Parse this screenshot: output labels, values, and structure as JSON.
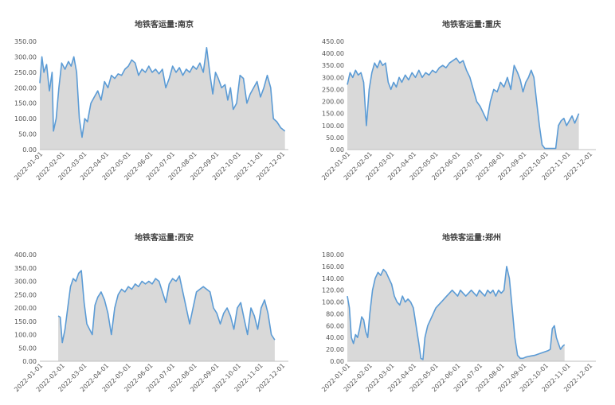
{
  "chart_data": [
    {
      "type": "area",
      "title": "地铁客运量:南京",
      "ylim": [
        0,
        350
      ],
      "y_ticks": [
        "0.00",
        "50.00",
        "100.00",
        "150.00",
        "200.00",
        "250.00",
        "300.00",
        "350.00"
      ],
      "x_ticks": [
        "2022-01-01",
        "2022-02-01",
        "2022-03-01",
        "2022-04-01",
        "2022-05-01",
        "2022-06-01",
        "2022-07-01",
        "2022-08-01",
        "2022-09-01",
        "2022-10-01",
        "2022-11-01",
        "2022-12-01"
      ],
      "series_color": "#5b9bd5",
      "fill_color": "#d9d9d9",
      "points": [
        [
          0,
          215
        ],
        [
          3,
          300
        ],
        [
          6,
          250
        ],
        [
          10,
          275
        ],
        [
          14,
          190
        ],
        [
          18,
          250
        ],
        [
          20,
          60
        ],
        [
          24,
          100
        ],
        [
          28,
          200
        ],
        [
          32,
          280
        ],
        [
          37,
          260
        ],
        [
          42,
          285
        ],
        [
          46,
          270
        ],
        [
          50,
          300
        ],
        [
          54,
          250
        ],
        [
          58,
          100
        ],
        [
          62,
          40
        ],
        [
          66,
          100
        ],
        [
          70,
          90
        ],
        [
          75,
          150
        ],
        [
          80,
          170
        ],
        [
          85,
          190
        ],
        [
          90,
          160
        ],
        [
          95,
          220
        ],
        [
          100,
          200
        ],
        [
          105,
          240
        ],
        [
          110,
          230
        ],
        [
          115,
          245
        ],
        [
          120,
          240
        ],
        [
          125,
          260
        ],
        [
          130,
          270
        ],
        [
          135,
          290
        ],
        [
          140,
          280
        ],
        [
          145,
          240
        ],
        [
          150,
          260
        ],
        [
          155,
          250
        ],
        [
          160,
          270
        ],
        [
          165,
          250
        ],
        [
          170,
          260
        ],
        [
          175,
          245
        ],
        [
          180,
          260
        ],
        [
          185,
          200
        ],
        [
          190,
          230
        ],
        [
          195,
          270
        ],
        [
          200,
          250
        ],
        [
          205,
          265
        ],
        [
          210,
          240
        ],
        [
          215,
          260
        ],
        [
          220,
          250
        ],
        [
          225,
          270
        ],
        [
          230,
          260
        ],
        [
          235,
          280
        ],
        [
          240,
          250
        ],
        [
          245,
          330
        ],
        [
          250,
          240
        ],
        [
          254,
          180
        ],
        [
          258,
          250
        ],
        [
          262,
          230
        ],
        [
          267,
          200
        ],
        [
          272,
          210
        ],
        [
          276,
          160
        ],
        [
          280,
          200
        ],
        [
          284,
          130
        ],
        [
          289,
          150
        ],
        [
          294,
          240
        ],
        [
          299,
          230
        ],
        [
          304,
          150
        ],
        [
          309,
          180
        ],
        [
          314,
          200
        ],
        [
          319,
          220
        ],
        [
          324,
          170
        ],
        [
          329,
          200
        ],
        [
          334,
          240
        ],
        [
          339,
          200
        ],
        [
          343,
          100
        ],
        [
          348,
          90
        ],
        [
          354,
          70
        ],
        [
          360,
          60
        ]
      ]
    },
    {
      "type": "area",
      "title": "地铁客运量:重庆",
      "ylim": [
        0,
        450
      ],
      "y_ticks": [
        "0.00",
        "50.00",
        "100.00",
        "150.00",
        "200.00",
        "250.00",
        "300.00",
        "350.00",
        "400.00",
        "450.00"
      ],
      "x_ticks": [
        "2022-01-01",
        "2022-02-01",
        "2022-03-01",
        "2022-04-01",
        "2022-05-01",
        "2022-06-01",
        "2022-07-01",
        "2022-08-01",
        "2022-09-01",
        "2022-10-01",
        "2022-11-01",
        "2022-12-01"
      ],
      "series_color": "#5b9bd5",
      "fill_color": "#d9d9d9",
      "points": [
        [
          0,
          270
        ],
        [
          4,
          320
        ],
        [
          8,
          300
        ],
        [
          12,
          330
        ],
        [
          16,
          310
        ],
        [
          20,
          320
        ],
        [
          24,
          280
        ],
        [
          28,
          100
        ],
        [
          32,
          250
        ],
        [
          36,
          320
        ],
        [
          40,
          360
        ],
        [
          44,
          340
        ],
        [
          48,
          370
        ],
        [
          52,
          350
        ],
        [
          56,
          360
        ],
        [
          60,
          280
        ],
        [
          64,
          250
        ],
        [
          68,
          280
        ],
        [
          72,
          260
        ],
        [
          76,
          300
        ],
        [
          80,
          280
        ],
        [
          85,
          310
        ],
        [
          90,
          290
        ],
        [
          95,
          320
        ],
        [
          100,
          300
        ],
        [
          105,
          330
        ],
        [
          110,
          300
        ],
        [
          115,
          320
        ],
        [
          120,
          310
        ],
        [
          125,
          330
        ],
        [
          130,
          320
        ],
        [
          135,
          340
        ],
        [
          140,
          350
        ],
        [
          145,
          340
        ],
        [
          150,
          360
        ],
        [
          155,
          370
        ],
        [
          160,
          380
        ],
        [
          165,
          360
        ],
        [
          170,
          370
        ],
        [
          175,
          330
        ],
        [
          180,
          300
        ],
        [
          185,
          250
        ],
        [
          190,
          200
        ],
        [
          195,
          180
        ],
        [
          200,
          150
        ],
        [
          205,
          120
        ],
        [
          210,
          200
        ],
        [
          215,
          250
        ],
        [
          220,
          240
        ],
        [
          225,
          280
        ],
        [
          230,
          260
        ],
        [
          235,
          300
        ],
        [
          240,
          250
        ],
        [
          245,
          350
        ],
        [
          250,
          320
        ],
        [
          254,
          290
        ],
        [
          258,
          240
        ],
        [
          262,
          280
        ],
        [
          266,
          300
        ],
        [
          270,
          330
        ],
        [
          274,
          300
        ],
        [
          278,
          200
        ],
        [
          282,
          100
        ],
        [
          286,
          20
        ],
        [
          290,
          5
        ],
        [
          294,
          5
        ],
        [
          298,
          5
        ],
        [
          302,
          5
        ],
        [
          306,
          5
        ],
        [
          310,
          100
        ],
        [
          314,
          120
        ],
        [
          318,
          130
        ],
        [
          322,
          100
        ],
        [
          326,
          120
        ],
        [
          330,
          140
        ],
        [
          334,
          110
        ],
        [
          340,
          150
        ]
      ]
    },
    {
      "type": "area",
      "title": "地铁客运量:西安",
      "ylim": [
        0,
        400
      ],
      "y_ticks": [
        "0.00",
        "50.00",
        "100.00",
        "150.00",
        "200.00",
        "250.00",
        "300.00",
        "350.00",
        "400.00"
      ],
      "x_ticks": [
        "2022-01-01",
        "2022-02-01",
        "2022-03-01",
        "2022-04-01",
        "2022-05-01",
        "2022-06-01",
        "2022-07-01",
        "2022-08-01",
        "2022-09-01",
        "2022-10-01",
        "2022-11-01",
        "2022-12-01"
      ],
      "series_color": "#5b9bd5",
      "fill_color": "#d9d9d9",
      "points": [
        [
          27,
          170
        ],
        [
          30,
          165
        ],
        [
          33,
          70
        ],
        [
          37,
          120
        ],
        [
          41,
          200
        ],
        [
          45,
          280
        ],
        [
          49,
          310
        ],
        [
          53,
          300
        ],
        [
          57,
          330
        ],
        [
          61,
          340
        ],
        [
          65,
          220
        ],
        [
          69,
          140
        ],
        [
          73,
          120
        ],
        [
          77,
          100
        ],
        [
          81,
          210
        ],
        [
          85,
          240
        ],
        [
          90,
          260
        ],
        [
          95,
          230
        ],
        [
          100,
          180
        ],
        [
          105,
          100
        ],
        [
          110,
          200
        ],
        [
          115,
          250
        ],
        [
          120,
          270
        ],
        [
          125,
          260
        ],
        [
          130,
          280
        ],
        [
          135,
          270
        ],
        [
          140,
          290
        ],
        [
          145,
          280
        ],
        [
          150,
          300
        ],
        [
          155,
          290
        ],
        [
          160,
          300
        ],
        [
          165,
          290
        ],
        [
          170,
          310
        ],
        [
          175,
          300
        ],
        [
          180,
          260
        ],
        [
          185,
          220
        ],
        [
          190,
          290
        ],
        [
          195,
          310
        ],
        [
          200,
          300
        ],
        [
          205,
          320
        ],
        [
          210,
          260
        ],
        [
          215,
          200
        ],
        [
          220,
          140
        ],
        [
          225,
          200
        ],
        [
          230,
          260
        ],
        [
          235,
          270
        ],
        [
          240,
          280
        ],
        [
          245,
          270
        ],
        [
          250,
          260
        ],
        [
          255,
          200
        ],
        [
          260,
          180
        ],
        [
          265,
          140
        ],
        [
          270,
          180
        ],
        [
          275,
          200
        ],
        [
          280,
          170
        ],
        [
          285,
          120
        ],
        [
          290,
          200
        ],
        [
          295,
          220
        ],
        [
          300,
          160
        ],
        [
          305,
          100
        ],
        [
          310,
          200
        ],
        [
          315,
          170
        ],
        [
          320,
          120
        ],
        [
          325,
          200
        ],
        [
          330,
          230
        ],
        [
          335,
          180
        ],
        [
          340,
          100
        ],
        [
          345,
          80
        ]
      ]
    },
    {
      "type": "area",
      "title": "地铁客运量:郑州",
      "ylim": [
        0,
        180
      ],
      "y_ticks": [
        "0.00",
        "20.00",
        "40.00",
        "60.00",
        "80.00",
        "100.00",
        "120.00",
        "140.00",
        "160.00",
        "180.00"
      ],
      "x_ticks": [
        "2022-01-01",
        "2022-02-01",
        "2022-03-01",
        "2022-04-01",
        "2022-05-01",
        "2022-06-01",
        "2022-07-01",
        "2022-08-01",
        "2022-09-01",
        "2022-10-01",
        "2022-11-01",
        "2022-12-01"
      ],
      "series_color": "#5b9bd5",
      "fill_color": "#d9d9d9",
      "points": [
        [
          0,
          110
        ],
        [
          3,
          90
        ],
        [
          6,
          40
        ],
        [
          9,
          30
        ],
        [
          12,
          45
        ],
        [
          15,
          40
        ],
        [
          18,
          55
        ],
        [
          21,
          75
        ],
        [
          24,
          70
        ],
        [
          27,
          50
        ],
        [
          30,
          40
        ],
        [
          33,
          80
        ],
        [
          37,
          120
        ],
        [
          41,
          140
        ],
        [
          45,
          150
        ],
        [
          49,
          145
        ],
        [
          53,
          155
        ],
        [
          57,
          150
        ],
        [
          61,
          140
        ],
        [
          65,
          130
        ],
        [
          69,
          110
        ],
        [
          73,
          100
        ],
        [
          77,
          95
        ],
        [
          81,
          110
        ],
        [
          85,
          100
        ],
        [
          89,
          105
        ],
        [
          93,
          100
        ],
        [
          97,
          90
        ],
        [
          101,
          60
        ],
        [
          105,
          30
        ],
        [
          108,
          5
        ],
        [
          111,
          3
        ],
        [
          114,
          40
        ],
        [
          118,
          60
        ],
        [
          122,
          70
        ],
        [
          126,
          80
        ],
        [
          130,
          90
        ],
        [
          134,
          95
        ],
        [
          138,
          100
        ],
        [
          142,
          105
        ],
        [
          146,
          110
        ],
        [
          150,
          115
        ],
        [
          154,
          120
        ],
        [
          158,
          115
        ],
        [
          162,
          110
        ],
        [
          166,
          120
        ],
        [
          170,
          115
        ],
        [
          174,
          110
        ],
        [
          178,
          115
        ],
        [
          182,
          120
        ],
        [
          186,
          115
        ],
        [
          190,
          110
        ],
        [
          194,
          120
        ],
        [
          198,
          115
        ],
        [
          202,
          110
        ],
        [
          206,
          120
        ],
        [
          210,
          115
        ],
        [
          214,
          120
        ],
        [
          218,
          110
        ],
        [
          222,
          120
        ],
        [
          226,
          115
        ],
        [
          230,
          120
        ],
        [
          234,
          160
        ],
        [
          238,
          140
        ],
        [
          242,
          90
        ],
        [
          246,
          40
        ],
        [
          250,
          10
        ],
        [
          254,
          5
        ],
        [
          258,
          5
        ],
        [
          262,
          7
        ],
        [
          266,
          8
        ],
        [
          270,
          9
        ],
        [
          275,
          10
        ],
        [
          280,
          12
        ],
        [
          285,
          14
        ],
        [
          290,
          16
        ],
        [
          295,
          18
        ],
        [
          298,
          20
        ],
        [
          301,
          55
        ],
        [
          304,
          60
        ],
        [
          307,
          40
        ],
        [
          310,
          30
        ],
        [
          313,
          20
        ],
        [
          316,
          25
        ],
        [
          319,
          28
        ]
      ]
    }
  ]
}
